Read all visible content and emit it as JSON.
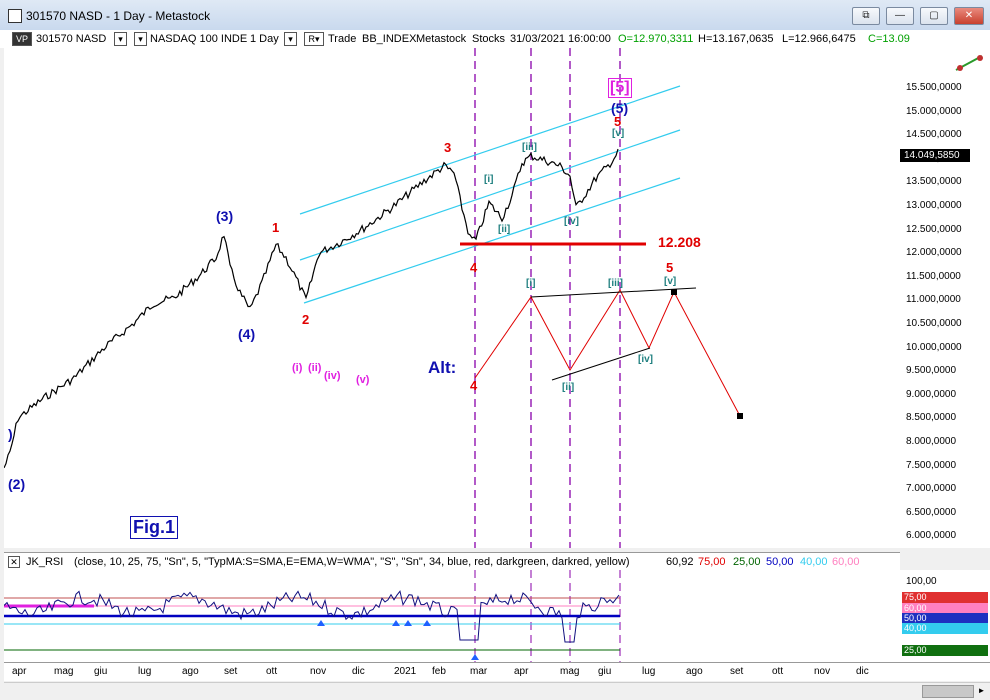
{
  "window": {
    "title": "301570 NASD - 1 Day - Metastock"
  },
  "window_controls": {
    "restore": "⧉",
    "minimize": "—",
    "maximize": "▢",
    "close": "✕"
  },
  "toolbar": {
    "vp": "VP",
    "symbol": "301570 NASD",
    "name": "NASDAQ 100 INDE",
    "period": "1 Day",
    "mode": "R",
    "trade": "Trade",
    "index": "BB_INDEX",
    "source": "Metastock",
    "type": "Stocks",
    "date": "31/03/2021",
    "time": "16:00:00",
    "open": "O=12.970,3311",
    "high": "H=13.167,0635",
    "low": "L=12.966,6475",
    "close": "C=13.09"
  },
  "price_axis": [
    "15.500,0000",
    "15.000,0000",
    "14.500,0000",
    "14.000,0000",
    "13.500,0000",
    "13.000,0000",
    "12.500,0000",
    "12.000,0000",
    "11.500,0000",
    "11.000,0000",
    "10.500,0000",
    "10.000,0000",
    "9.500,0000",
    "9.000,0000",
    "8.500,0000",
    "8.000,0000",
    "7.500,0000",
    "7.000,0000",
    "6.500,0000",
    "6.000,0000"
  ],
  "last_price": "14.049,5850",
  "wave_labels": {
    "w2": "(2)",
    "w3": "(3)",
    "w4": "(4)",
    "w5": "(5)",
    "w5b": "[5]",
    "r1": "1",
    "r2": "2",
    "r3": "3",
    "r4": "4",
    "r5": "5",
    "r5b": "5",
    "i": "[i]",
    "ii": "[ii]",
    "iii": "[iii]",
    "iv": "[iv]",
    "v": "[v]",
    "ai": "[i]",
    "aii": "[ii]",
    "aiii": "[iii]",
    "aiv": "[iv]",
    "av": "[v]",
    "mi": "(i)",
    "mii": "(ii)",
    "miv": "(iv)",
    "mv": "(v)",
    "alt": "Alt:",
    "alt4": "4",
    "level": "12.208",
    "fig": "Fig.1",
    "paren": ")"
  },
  "indicator": {
    "name": "JK_RSI",
    "params": "(close, 10, 25, 75, \"Sn\", 5, \"TypMA:S=SMA,E=EMA,W=WMA\", \"S\", \"Sn\", 34, blue, red, darkgreen, darkred, yellow)",
    "value": "60,92",
    "v75": "75,00",
    "v25": "25,00",
    "v50": "50,00",
    "v40": "40,00",
    "v60": "60,00"
  },
  "rsi_axis": {
    "top": "100,00",
    "t75": "75,00",
    "t60": "60,00",
    "t50": "50,00",
    "t40": "40,00",
    "t25": "25,00"
  },
  "months": [
    "apr",
    "mag",
    "giu",
    "lug",
    "ago",
    "set",
    "ott",
    "nov",
    "dic",
    "2021",
    "feb",
    "mar",
    "apr",
    "mag",
    "giu",
    "lug",
    "ago",
    "set",
    "ott",
    "nov",
    "dic"
  ],
  "colors": {
    "red_line": "#e00000",
    "channel": "#33ccee",
    "wave_blue": "#1010b0",
    "wave_red": "#e00000",
    "teal": "#208080",
    "magenta": "#e020e0"
  }
}
